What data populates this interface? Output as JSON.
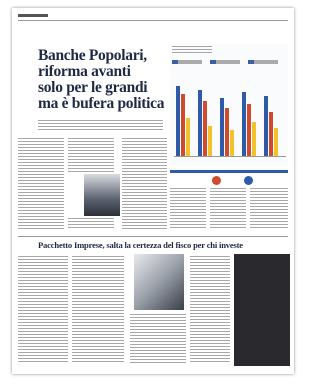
{
  "page": {
    "headline": [
      "Banche Popolari,",
      "riforma avanti",
      "solo per le grandi",
      "ma è bufera politica"
    ],
    "second_headline": "Pacchetto Imprese, salta la certezza del fisco per chi investe"
  }
}
